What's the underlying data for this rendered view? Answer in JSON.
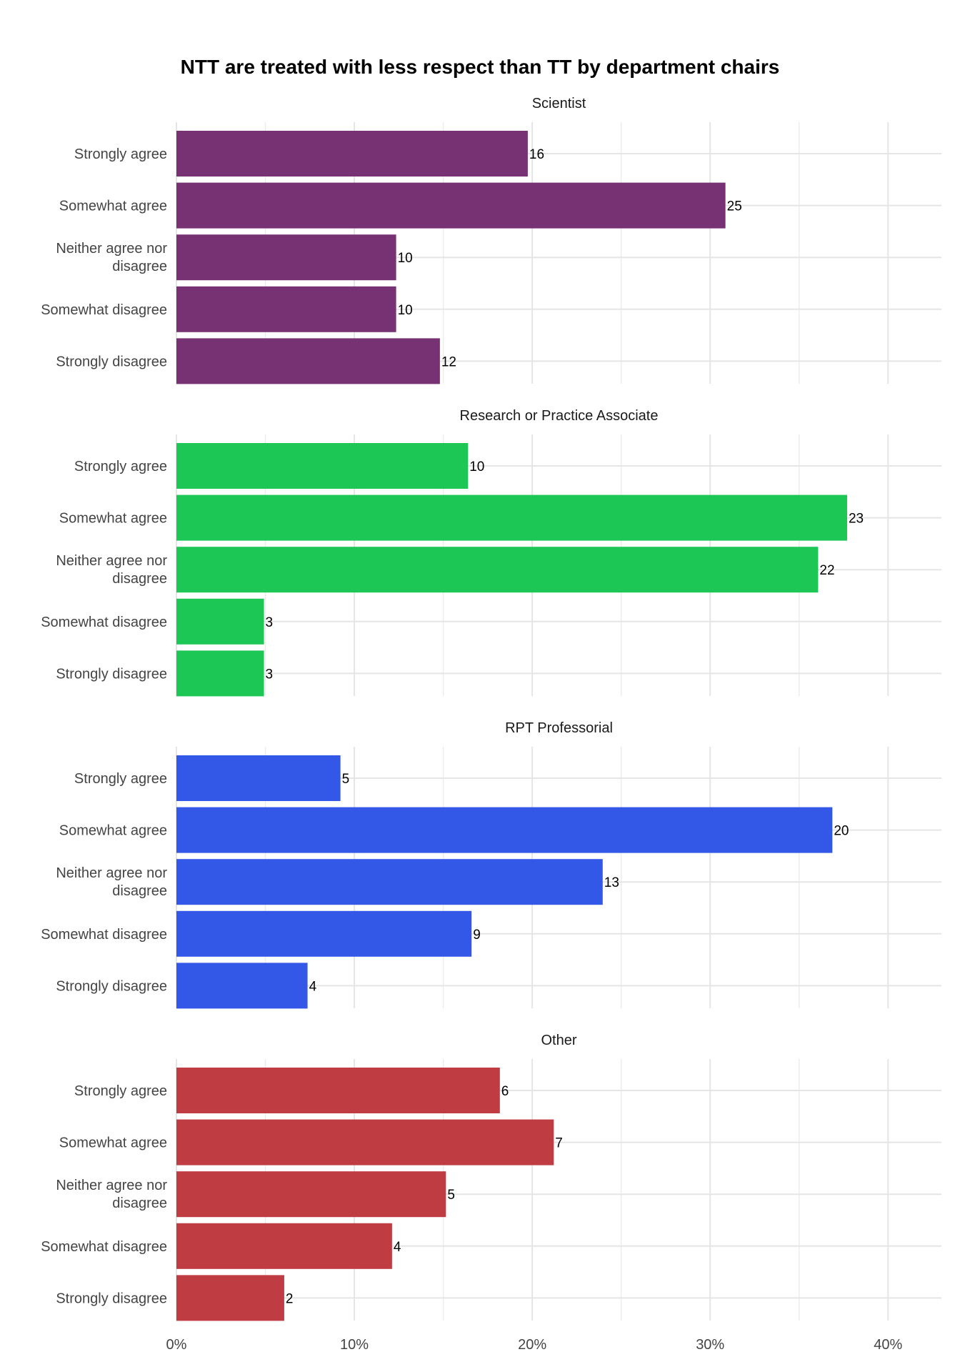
{
  "chart_data": {
    "type": "bar",
    "orientation": "horizontal",
    "facet": "vertical",
    "title": "NTT are treated with less respect than TT by department chairs",
    "categories": [
      "Strongly agree",
      "Somewhat agree",
      "Neither agree nor disagree",
      "Somewhat disagree",
      "Strongly disagree"
    ],
    "x_axis": {
      "min": 0,
      "max": 0.43,
      "ticks": [
        0,
        0.1,
        0.2,
        0.3,
        0.4
      ],
      "tick_labels": [
        "0%",
        "10%",
        "20%",
        "30%",
        "40%"
      ]
    },
    "grid": true,
    "panels": [
      {
        "name": "Scientist",
        "color": "#773274",
        "percent": [
          0.1975,
          0.3086,
          0.1235,
          0.1235,
          0.1481
        ],
        "counts": [
          16,
          25,
          10,
          10,
          12
        ]
      },
      {
        "name": "Research or Practice Associate",
        "color": "#1dc755",
        "percent": [
          0.1639,
          0.377,
          0.3607,
          0.0492,
          0.0492
        ],
        "counts": [
          10,
          23,
          22,
          3,
          3
        ]
      },
      {
        "name": "RPT Professorial",
        "color": "#3358e8",
        "percent": [
          0.0922,
          0.3687,
          0.2396,
          0.1659,
          0.0737
        ],
        "counts": [
          5,
          20,
          13,
          9,
          4
        ]
      },
      {
        "name": "Other",
        "color": "#c03c43",
        "percent": [
          0.1818,
          0.2121,
          0.1515,
          0.1212,
          0.0606
        ],
        "counts": [
          6,
          7,
          5,
          4,
          2
        ]
      }
    ]
  }
}
